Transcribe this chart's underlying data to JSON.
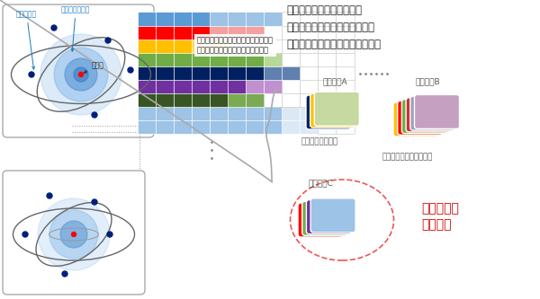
{
  "bg_color": "#ffffff",
  "title_text": "想定される電子の配置から\nいくつかを選んで組み合わせて\n電子同士の相互作用を表すには？",
  "atom_label_outer": "外側の電子",
  "atom_label_inner": "内側の電子集団",
  "atom_label_nucleus": "原子核",
  "grid_text": "原子の世界では、電子は同時に何通り\nもの配置を取ることが想定される。",
  "pattern_a_label": "パターンA",
  "pattern_b_label": "パターンB",
  "pattern_c_label": "パターンC",
  "low_acc_label": "精度が低い・・・",
  "too_slow_label": "時間がかかり過ぎる・・",
  "best_label": "最適なのは\nこれだ！",
  "pattern_a_colors": [
    "#c5d9a0",
    "#ffc000",
    "#002060"
  ],
  "pattern_b_colors": [
    "#c5a0c0",
    "#9f9fbf",
    "#cc3333",
    "#70ad47",
    "#ff0000",
    "#ffc000"
  ],
  "pattern_c_colors": [
    "#9dc3e6",
    "#7030a0",
    "#70ad47",
    "#ff0000"
  ]
}
